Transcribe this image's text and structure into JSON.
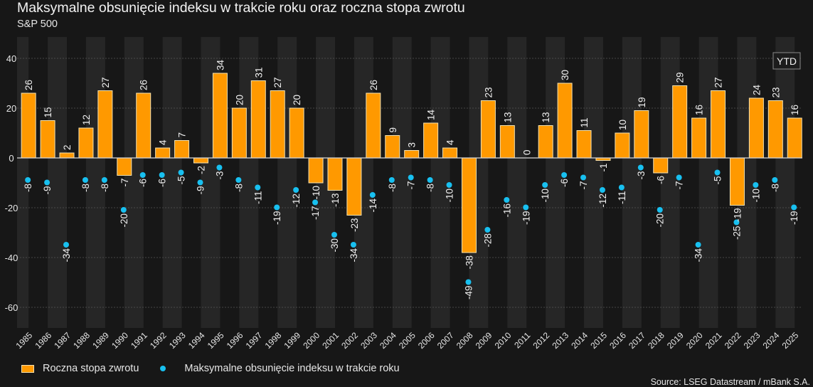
{
  "chart_data": {
    "type": "bar",
    "title": "Maksymalne obsunięcie indeksu w trakcie roku oraz roczna stopa zwrotu",
    "subtitle": "S&P 500",
    "xlabel": "",
    "ylabel": "",
    "ylim": [
      -70,
      48
    ],
    "yticks": [
      40,
      20,
      0,
      -20,
      -40,
      -60
    ],
    "grid": true,
    "annotation": "YTD",
    "legend_position": "bottom-left",
    "categories": [
      "1985",
      "1986",
      "1987",
      "1988",
      "1989",
      "1990",
      "1991",
      "1992",
      "1993",
      "1994",
      "1995",
      "1996",
      "1997",
      "1998",
      "1999",
      "2000",
      "2001",
      "2002",
      "2003",
      "2004",
      "2005",
      "2006",
      "2007",
      "2008",
      "2009",
      "2010",
      "2011",
      "2012",
      "2013",
      "2014",
      "2015",
      "2016",
      "2017",
      "2018",
      "2019",
      "2020",
      "2021",
      "2022",
      "2023",
      "2024",
      "2025"
    ],
    "series": [
      {
        "name": "Roczna stopa zwrotu",
        "type": "bar",
        "color": "#ff9900",
        "values": [
          26,
          15,
          2,
          12,
          27,
          -7,
          26,
          4,
          7,
          -2,
          34,
          20,
          31,
          27,
          20,
          -10,
          -13,
          -23,
          26,
          9,
          3,
          14,
          4,
          -38,
          23,
          13,
          0,
          13,
          30,
          11,
          -1,
          10,
          19,
          -6,
          29,
          16,
          27,
          -19,
          24,
          23,
          16
        ]
      },
      {
        "name": "Maksymalne obsunięcie indeksu w trakcie roku",
        "type": "scatter",
        "color": "#18c0f0",
        "values": [
          -8,
          -9,
          -34,
          -8,
          -8,
          -20,
          -6,
          -6,
          -5,
          -9,
          -3,
          -8,
          -11,
          -19,
          -12,
          -17,
          -30,
          -34,
          -14,
          -8,
          -7,
          -8,
          -10,
          -49,
          -28,
          -16,
          -19,
          -10,
          -6,
          -7,
          -12,
          -11,
          -3,
          -20,
          -7,
          -34,
          -5,
          -25,
          -10,
          -8,
          -19
        ]
      }
    ]
  },
  "header": {
    "title": "Maksymalne obsunięcie indeksu w trakcie roku oraz roczna stopa zwrotu",
    "subtitle": "S&P 500"
  },
  "legend": {
    "bar_label": "Roczna stopa zwrotu",
    "dot_label": "Maksymalne obsunięcie indeksu w trakcie roku"
  },
  "footer": {
    "source": "Source: LSEG Datastream / mBank S.A."
  }
}
